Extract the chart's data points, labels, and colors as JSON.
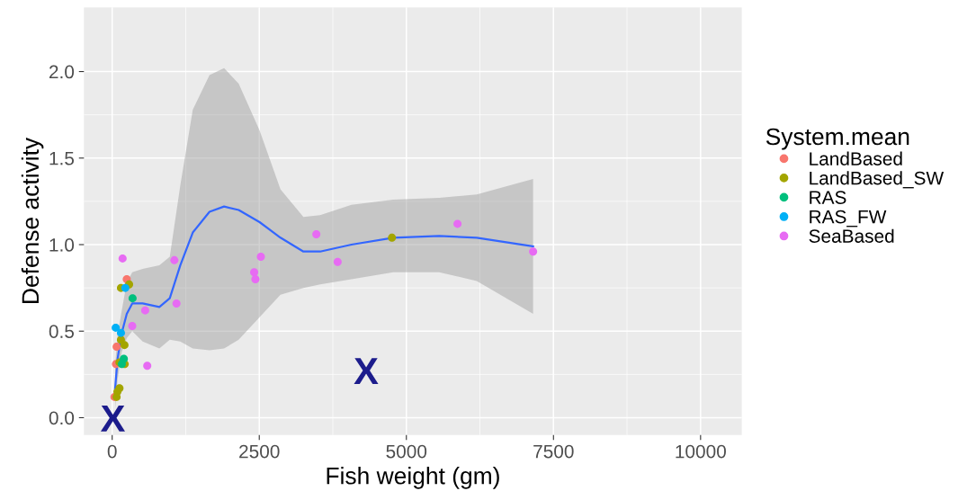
{
  "chart_data": {
    "type": "scatter",
    "xlabel": "Fish weight (gm)",
    "ylabel": "Defense activity",
    "legend_title": "System.mean",
    "legend": "right",
    "grid": true,
    "marker": "circle",
    "xlim": [
      -480,
      10700
    ],
    "ylim": [
      -0.1,
      2.37
    ],
    "xticks": [
      0,
      2500,
      5000,
      7500,
      10000
    ],
    "yticks": [
      {
        "value": 0,
        "label": "0.0"
      },
      {
        "value": 0.5,
        "label": "0.5"
      },
      {
        "value": 1,
        "label": "1.0"
      },
      {
        "value": 1.5,
        "label": "1.5"
      },
      {
        "value": 2,
        "label": "2.0"
      }
    ],
    "series": [
      {
        "type": "line",
        "color": "#3366ff",
        "line_style": "solid",
        "marker": "none",
        "x": [
          50,
          92,
          163,
          248,
          341,
          518,
          802,
          979,
          1157,
          1370,
          1654,
          1902,
          2150,
          2505,
          2860,
          3250,
          3534,
          4067,
          4776,
          5557,
          6196,
          7154
        ],
        "values": [
          0.17,
          0.34,
          0.49,
          0.6,
          0.66,
          0.66,
          0.64,
          0.69,
          0.88,
          1.07,
          1.19,
          1.22,
          1.2,
          1.13,
          1.04,
          0.96,
          0.96,
          1.0,
          1.04,
          1.05,
          1.04,
          0.99
        ],
        "lower": [
          0.05,
          0.22,
          0.38,
          0.46,
          0.5,
          0.44,
          0.4,
          0.45,
          0.44,
          0.4,
          0.39,
          0.4,
          0.45,
          0.58,
          0.71,
          0.75,
          0.77,
          0.8,
          0.84,
          0.84,
          0.79,
          0.6
        ],
        "upper": [
          0.3,
          0.48,
          0.62,
          0.78,
          0.84,
          0.86,
          0.88,
          0.93,
          1.34,
          1.78,
          1.98,
          2.02,
          1.93,
          1.66,
          1.32,
          1.16,
          1.17,
          1.23,
          1.26,
          1.27,
          1.29,
          1.38
        ]
      },
      {
        "name": "LandBased",
        "color": "#f8766d",
        "x": [
          248,
          75,
          64,
          39
        ],
        "values": [
          0.8,
          0.41,
          0.31,
          0.12
        ]
      },
      {
        "name": "LandBased_SW",
        "color": "#a3a500",
        "x": [
          4755,
          288,
          149,
          149,
          209,
          124,
          213,
          124,
          89,
          75
        ],
        "values": [
          1.04,
          0.77,
          0.75,
          0.45,
          0.42,
          0.32,
          0.31,
          0.17,
          0.15,
          0.12
        ]
      },
      {
        "name": "RAS",
        "color": "#00bf7d",
        "x": [
          347,
          198,
          164
        ],
        "values": [
          0.69,
          0.34,
          0.31
        ]
      },
      {
        "name": "RAS_FW",
        "color": "#00b0f6",
        "x": [
          223,
          60,
          149
        ],
        "values": [
          0.75,
          0.52,
          0.49
        ]
      },
      {
        "name": "SeaBased",
        "color": "#e76bf3",
        "x": [
          177,
          1057,
          2527,
          2413,
          2434,
          3470,
          3832,
          5869,
          7154,
          1093,
          561,
          341,
          596
        ],
        "values": [
          0.92,
          0.91,
          0.93,
          0.84,
          0.8,
          1.06,
          0.9,
          1.12,
          0.96,
          0.66,
          0.62,
          0.53,
          0.3
        ]
      }
    ],
    "annotations": [
      "X",
      "X"
    ]
  }
}
